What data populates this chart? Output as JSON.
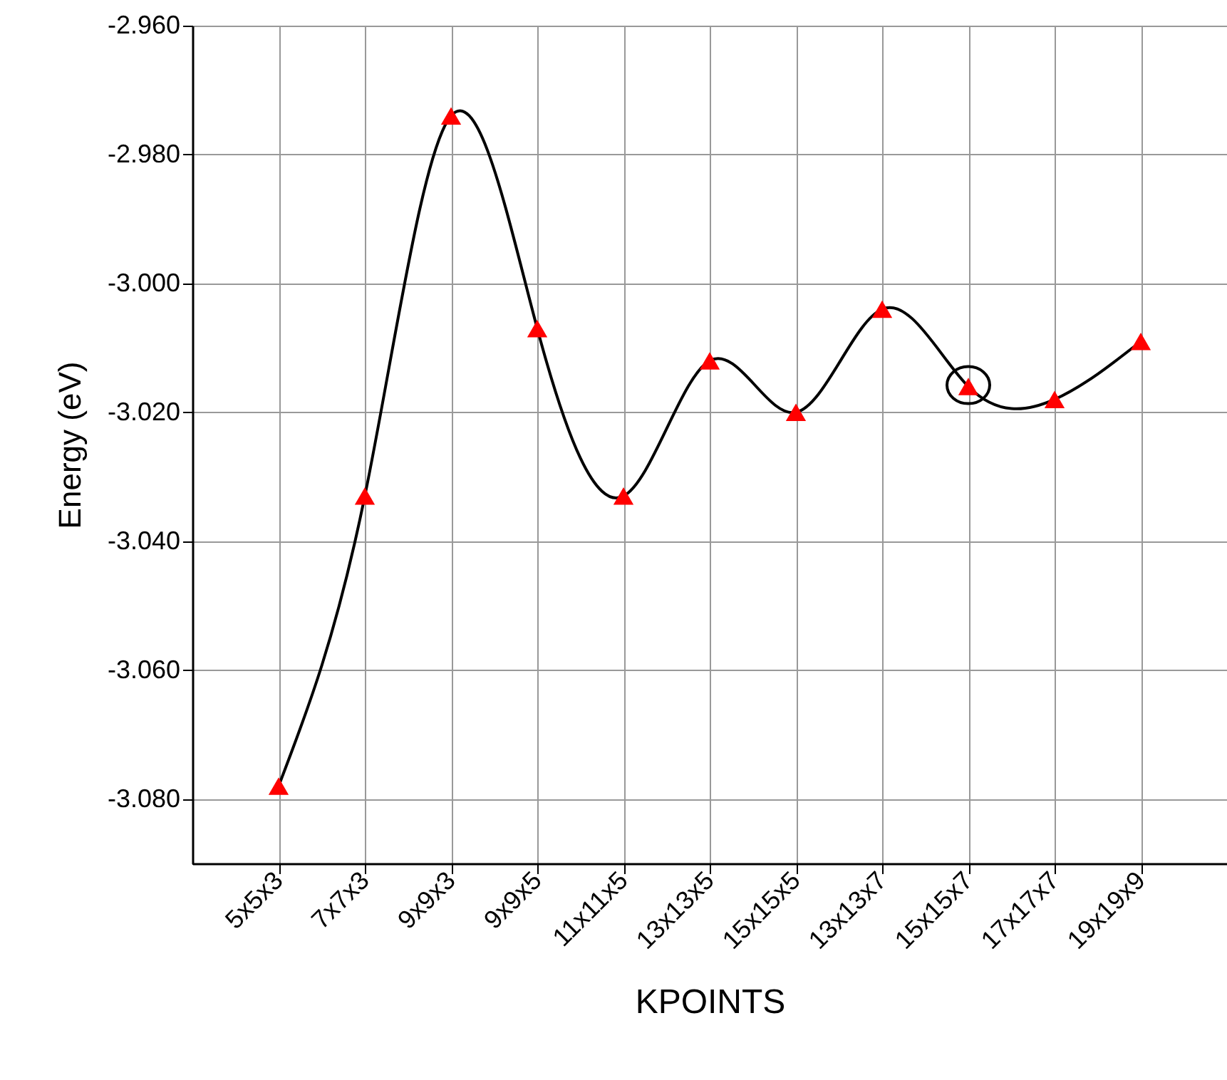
{
  "chart_data": {
    "type": "line",
    "xlabel": "KPOINTS",
    "ylabel": "Energy (eV)",
    "categories": [
      "5x5x3",
      "7x7x3",
      "9x9x3",
      "9x9x5",
      "11x11x5",
      "13x13x5",
      "15x15x5",
      "13x13x7",
      "15x15x7",
      "17x17x7",
      "19x19x9"
    ],
    "series": [
      {
        "color": "#ff0000",
        "values": [
          -3.078,
          -3.033,
          -2.974,
          -3.007,
          -3.033,
          -3.012,
          -3.02,
          -3.004,
          -3.016,
          -3.018,
          -3.009
        ]
      }
    ],
    "ylim": [
      -3.09,
      -2.96
    ],
    "yticks": [
      {
        "value": -3.08,
        "label": "-3.080"
      },
      {
        "value": -3.06,
        "label": "-3.060"
      },
      {
        "value": -3.04,
        "label": "-3.040"
      },
      {
        "value": -3.02,
        "label": "-3.020"
      },
      {
        "value": -3.0,
        "label": "-3.000"
      },
      {
        "value": -2.98,
        "label": "-2.980"
      },
      {
        "value": -2.96,
        "label": "-2.960"
      }
    ],
    "grid": true,
    "marker": "triangle",
    "line_style": "solid"
  }
}
